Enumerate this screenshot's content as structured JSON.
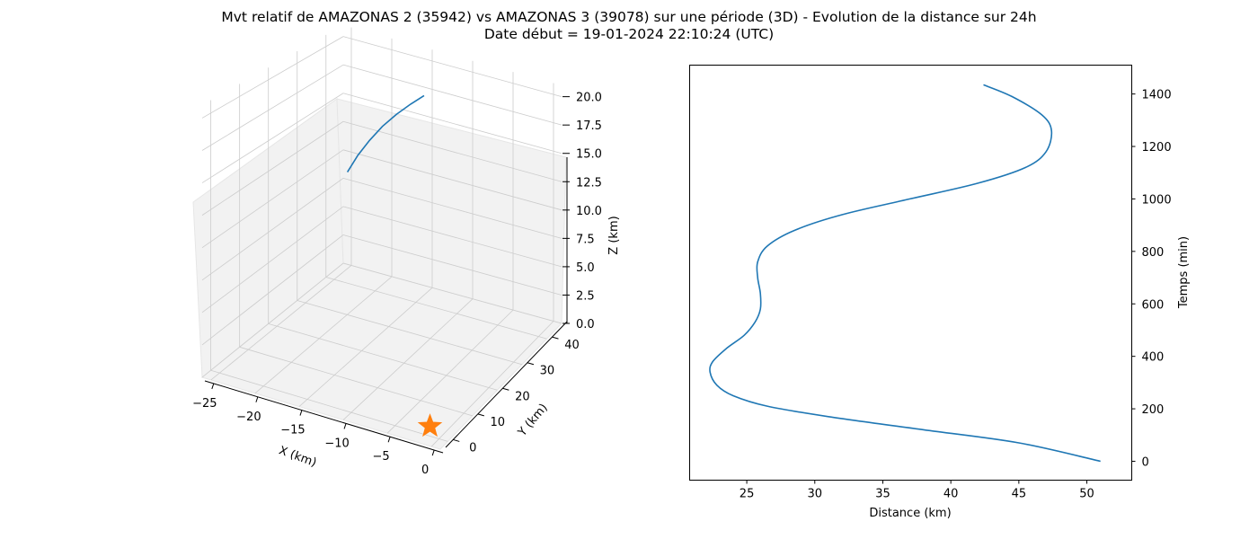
{
  "figure": {
    "title_line1": "Mvt relatif de AMAZONAS 2 (35942) vs AMAZONAS 3 (39078) sur une période (3D) - Evolution de la distance sur 24h",
    "title_line2": "Date début = 19-01-2024 22:10:24 (UTC)"
  },
  "colors": {
    "series": "#1f77b4",
    "marker": "#ff7f0e",
    "pane": "#f2f2f2",
    "grid": "#cccccc"
  },
  "chart_data": [
    {
      "type": "line",
      "projection": "3d",
      "xlabel": "X (km)",
      "ylabel": "Y (km)",
      "zlabel": "Z (km)",
      "x_ticks": [
        "−25",
        "−20",
        "−15",
        "−10",
        "−5",
        "0"
      ],
      "y_ticks": [
        "0",
        "10",
        "20",
        "30",
        "40"
      ],
      "z_ticks": [
        "0.0",
        "2.5",
        "5.0",
        "7.5",
        "10.0",
        "12.5",
        "15.0",
        "17.5",
        "20.0"
      ],
      "xlim": [
        -26,
        1
      ],
      "ylim": [
        -3,
        46
      ],
      "zlim": [
        0,
        21
      ],
      "grid": true,
      "series": [
        {
          "x": [
            -22.0,
            -21.3,
            -20.4,
            -19.3,
            -18.0,
            -16.6,
            -15.2
          ],
          "y": [
            36.0,
            37.7,
            39.2,
            40.6,
            41.8,
            42.8,
            43.6
          ],
          "z": [
            10.6,
            11.9,
            13.1,
            14.3,
            15.4,
            16.4,
            17.3
          ]
        }
      ],
      "marker": {
        "x": 0,
        "y": 0,
        "z": 0,
        "symbol": "star"
      }
    },
    {
      "type": "line",
      "xlabel": "Distance (km)",
      "ylabel": "Temps (min)",
      "x_ticks": [
        25,
        30,
        35,
        40,
        45,
        50
      ],
      "y_ticks": [
        0,
        200,
        400,
        600,
        800,
        1000,
        1200,
        1400
      ],
      "xlim": [
        20.8,
        53.3
      ],
      "ylim": [
        -72,
        1510
      ],
      "grid": false,
      "y_axis_side": "right",
      "series": [
        {
          "x": [
            51.0,
            45.0,
            38.0,
            31.0,
            26.5,
            24.0,
            22.8,
            22.3,
            22.5,
            23.5,
            24.8,
            25.6,
            26.0,
            26.0,
            25.8,
            25.8,
            26.5,
            28.5,
            32.0,
            37.0,
            42.0,
            45.5,
            47.0,
            47.4,
            46.7,
            44.5,
            42.4
          ],
          "y": [
            0,
            70,
            120,
            170,
            210,
            250,
            290,
            340,
            380,
            430,
            480,
            530,
            580,
            640,
            700,
            760,
            820,
            880,
            940,
            1000,
            1060,
            1120,
            1180,
            1260,
            1320,
            1390,
            1435
          ]
        }
      ]
    }
  ]
}
